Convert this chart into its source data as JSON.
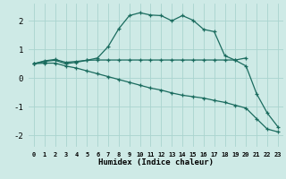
{
  "xlabel": "Humidex (Indice chaleur)",
  "bg_color": "#ceeae6",
  "grid_color": "#aad4cf",
  "line_color": "#1a6b5e",
  "xlim": [
    -0.5,
    23.5
  ],
  "ylim": [
    -2.4,
    2.6
  ],
  "yticks": [
    -2,
    -1,
    0,
    1,
    2
  ],
  "xtick_labels": [
    "0",
    "1",
    "2",
    "3",
    "4",
    "5",
    "6",
    "7",
    "8",
    "9",
    "10",
    "11",
    "12",
    "13",
    "14",
    "15",
    "16",
    "17",
    "18",
    "19",
    "20",
    "21",
    "22",
    "23"
  ],
  "series1_x": [
    0,
    1,
    2,
    3,
    4,
    5,
    6,
    7,
    8,
    9,
    10,
    11,
    12,
    13,
    14,
    15,
    16,
    17,
    18,
    19,
    20
  ],
  "series1_y": [
    0.5,
    0.6,
    0.65,
    0.55,
    0.58,
    0.62,
    0.63,
    0.63,
    0.63,
    0.63,
    0.63,
    0.63,
    0.63,
    0.63,
    0.63,
    0.63,
    0.63,
    0.63,
    0.63,
    0.63,
    0.7
  ],
  "series2_x": [
    0,
    1,
    2,
    3,
    4,
    5,
    6,
    7,
    8,
    9,
    10,
    11,
    12,
    13,
    14,
    15,
    16,
    17,
    18,
    19,
    20,
    21,
    22,
    23
  ],
  "series2_y": [
    0.5,
    0.58,
    0.62,
    0.5,
    0.55,
    0.62,
    0.7,
    1.1,
    1.72,
    2.18,
    2.28,
    2.2,
    2.18,
    2.0,
    2.18,
    2.02,
    1.7,
    1.62,
    0.78,
    0.62,
    0.42,
    -0.55,
    -1.22,
    -1.7
  ],
  "series3_x": [
    0,
    1,
    2,
    3,
    4,
    5,
    6,
    7,
    8,
    9,
    10,
    11,
    12,
    13,
    14,
    15,
    16,
    17,
    18,
    19,
    20,
    21,
    22,
    23
  ],
  "series3_y": [
    0.5,
    0.52,
    0.52,
    0.42,
    0.35,
    0.25,
    0.15,
    0.05,
    -0.05,
    -0.15,
    -0.25,
    -0.35,
    -0.42,
    -0.52,
    -0.6,
    -0.65,
    -0.7,
    -0.78,
    -0.85,
    -0.95,
    -1.05,
    -1.42,
    -1.78,
    -1.88
  ]
}
